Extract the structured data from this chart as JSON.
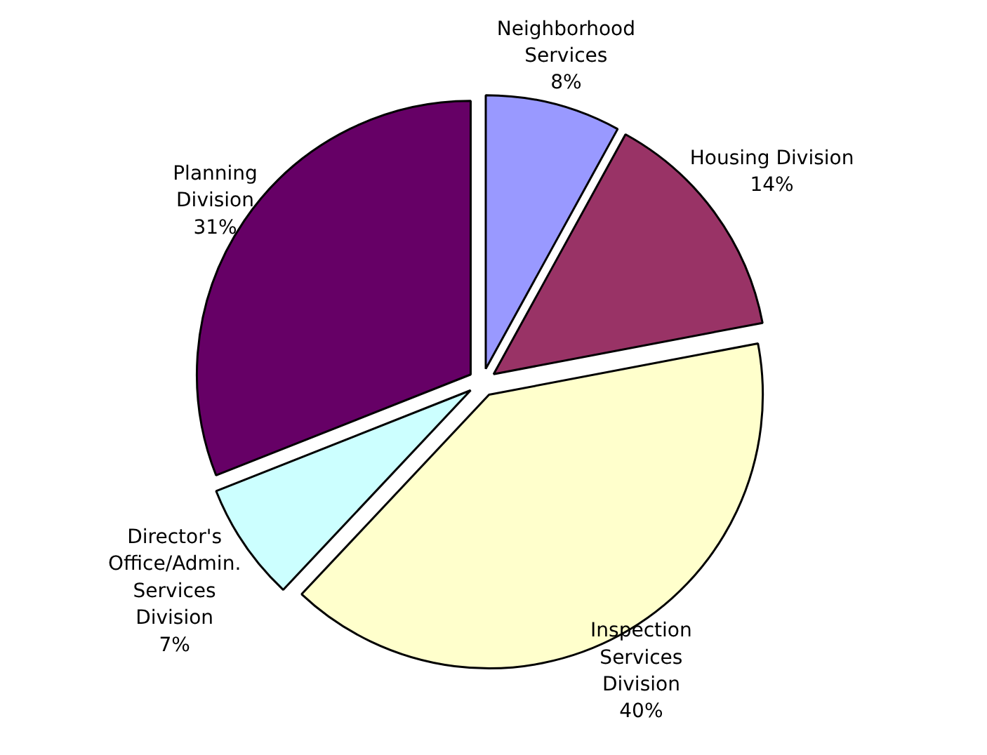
{
  "chart_data": {
    "type": "pie",
    "categories": [
      "Neighborhood Services",
      "Housing Division",
      "Inspection Services Division",
      "Director's Office/Admin. Services Division",
      "Planning Division"
    ],
    "values": [
      8,
      14,
      40,
      7,
      31
    ],
    "value_labels": [
      "8%",
      "14%",
      "40%",
      "7%",
      "31%"
    ],
    "colors": [
      "#9999ff",
      "#993366",
      "#ffffcc",
      "#ccffff",
      "#660066"
    ]
  }
}
